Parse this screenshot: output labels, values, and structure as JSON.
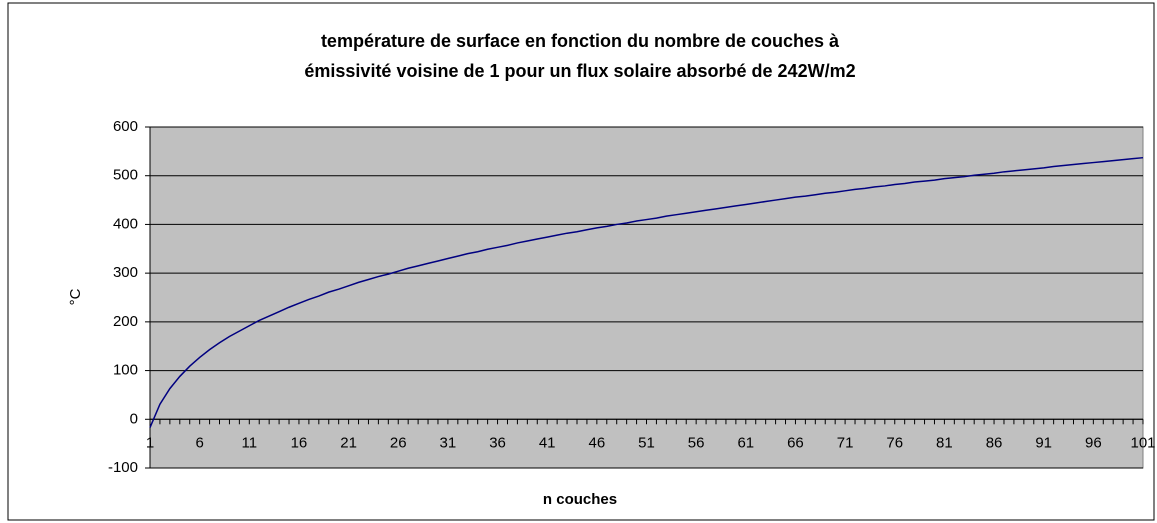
{
  "chart_data": {
    "type": "line",
    "title": [
      "température de surface en fonction du nombre de couches à",
      "émissivité voisine de 1 pour un flux solaire absorbé de 242W/m2"
    ],
    "ylabel": "°C",
    "xlabel": "n couches",
    "categories": [
      "1",
      null,
      null,
      null,
      null,
      "6",
      null,
      null,
      null,
      null,
      "11",
      null,
      null,
      null,
      null,
      "16",
      null,
      null,
      null,
      null,
      "21",
      null,
      null,
      null,
      null,
      "26",
      null,
      null,
      null,
      null,
      "31",
      null,
      null,
      null,
      null,
      "36",
      null,
      null,
      null,
      null,
      "41",
      null,
      null,
      null,
      null,
      "46",
      null,
      null,
      null,
      null,
      "51",
      null,
      null,
      null,
      null,
      "56",
      null,
      null,
      null,
      null,
      "61",
      null,
      null,
      null,
      null,
      "66",
      null,
      null,
      null,
      null,
      "71",
      null,
      null,
      null,
      null,
      "76",
      null,
      null,
      null,
      null,
      "81",
      null,
      null,
      null,
      null,
      "86",
      null,
      null,
      null,
      null,
      "91",
      null,
      null,
      null,
      null,
      "96",
      null,
      null,
      null,
      null,
      "101"
    ],
    "values": [
      -17,
      31,
      63,
      88,
      109,
      127,
      143,
      157,
      170,
      181,
      192,
      203,
      212,
      221,
      230,
      238,
      246,
      253,
      261,
      267,
      274,
      281,
      287,
      293,
      298,
      304,
      310,
      315,
      320,
      325,
      330,
      335,
      340,
      344,
      349,
      353,
      357,
      362,
      366,
      370,
      374,
      378,
      382,
      385,
      389,
      393,
      396,
      400,
      403,
      407,
      410,
      413,
      417,
      420,
      423,
      426,
      429,
      432,
      435,
      438,
      441,
      444,
      447,
      450,
      453,
      456,
      458,
      461,
      464,
      466,
      469,
      472,
      474,
      477,
      479,
      482,
      484,
      487,
      489,
      491,
      494,
      496,
      498,
      501,
      503,
      505,
      508,
      510,
      512,
      514,
      516,
      519,
      521,
      523,
      525,
      527,
      529,
      531,
      533,
      535,
      537
    ],
    "color": "#000080",
    "ylim": [
      -100,
      600
    ],
    "yticks": [
      -100,
      0,
      100,
      200,
      300,
      400,
      500,
      600
    ],
    "grid": true
  }
}
